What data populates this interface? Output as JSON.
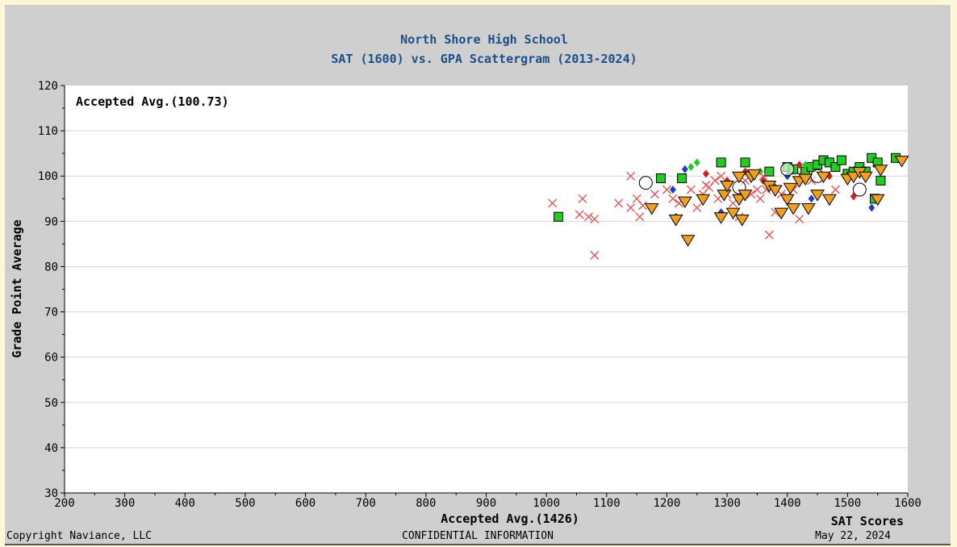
{
  "chart_data": {
    "type": "scatter",
    "title": "North Shore High School",
    "subtitle": "SAT (1600) vs. GPA Scattergram (2013-2024)",
    "xlabel": "SAT Scores",
    "ylabel": "Grade Point Average",
    "xlim": [
      200,
      1600
    ],
    "ylim": [
      30,
      120
    ],
    "xticks": [
      200,
      300,
      400,
      500,
      600,
      700,
      800,
      900,
      1000,
      1100,
      1200,
      1300,
      1400,
      1500,
      1600
    ],
    "yticks": [
      30,
      40,
      50,
      60,
      70,
      80,
      90,
      100,
      110,
      120
    ],
    "grid": "horizontal",
    "inner_annotation": "Accepted Avg.(100.73)",
    "x_annotation": "Accepted Avg.(1426)",
    "series": [
      {
        "marker": "square",
        "color": "#22cc22",
        "points": [
          [
            1020,
            91
          ],
          [
            1190,
            99.5
          ],
          [
            1225,
            99.5
          ],
          [
            1290,
            103
          ],
          [
            1330,
            103
          ],
          [
            1370,
            101
          ],
          [
            1400,
            102
          ],
          [
            1410,
            101.5
          ],
          [
            1430,
            101
          ],
          [
            1440,
            102
          ],
          [
            1450,
            102.5
          ],
          [
            1460,
            103.5
          ],
          [
            1470,
            103
          ],
          [
            1480,
            102
          ],
          [
            1490,
            103.5
          ],
          [
            1500,
            100.5
          ],
          [
            1510,
            101
          ],
          [
            1520,
            102
          ],
          [
            1530,
            101
          ],
          [
            1540,
            104
          ],
          [
            1550,
            103
          ],
          [
            1555,
            99
          ],
          [
            1545,
            95
          ],
          [
            1580,
            104
          ]
        ]
      },
      {
        "marker": "diamond",
        "color": "#1e3fbf",
        "points": [
          [
            1210,
            97
          ],
          [
            1215,
            91
          ],
          [
            1230,
            101.5
          ],
          [
            1290,
            92
          ],
          [
            1380,
            97.5
          ],
          [
            1400,
            100
          ],
          [
            1430,
            99
          ],
          [
            1440,
            95
          ],
          [
            1500,
            100
          ],
          [
            1540,
            93
          ]
        ]
      },
      {
        "marker": "diamond",
        "color": "#22cc22",
        "points": [
          [
            1240,
            102
          ],
          [
            1250,
            103
          ],
          [
            1355,
            101
          ],
          [
            1430,
            102.5
          ]
        ]
      },
      {
        "marker": "diamond",
        "color": "#cc2222",
        "points": [
          [
            1265,
            100.5
          ],
          [
            1300,
            99
          ],
          [
            1330,
            101
          ],
          [
            1360,
            99
          ],
          [
            1420,
            102.5
          ],
          [
            1470,
            100
          ],
          [
            1510,
            95.5
          ]
        ]
      },
      {
        "marker": "x",
        "color": "#e06060",
        "points": [
          [
            1010,
            94
          ],
          [
            1055,
            91.5
          ],
          [
            1060,
            95
          ],
          [
            1070,
            91
          ],
          [
            1080,
            90.5
          ],
          [
            1080,
            82.5
          ],
          [
            1120,
            94
          ],
          [
            1140,
            100
          ],
          [
            1140,
            93
          ],
          [
            1150,
            95
          ],
          [
            1155,
            91
          ],
          [
            1160,
            93.5
          ],
          [
            1180,
            96
          ],
          [
            1200,
            97
          ],
          [
            1210,
            95
          ],
          [
            1220,
            94
          ],
          [
            1240,
            97
          ],
          [
            1250,
            93
          ],
          [
            1260,
            96
          ],
          [
            1265,
            98
          ],
          [
            1270,
            97.5
          ],
          [
            1280,
            99
          ],
          [
            1285,
            95
          ],
          [
            1290,
            100
          ],
          [
            1300,
            96
          ],
          [
            1310,
            94
          ],
          [
            1320,
            91
          ],
          [
            1330,
            99
          ],
          [
            1340,
            96
          ],
          [
            1350,
            97
          ],
          [
            1355,
            95
          ],
          [
            1360,
            100
          ],
          [
            1365,
            97
          ],
          [
            1370,
            87
          ],
          [
            1380,
            92
          ],
          [
            1390,
            96
          ],
          [
            1400,
            95.5
          ],
          [
            1410,
            97
          ],
          [
            1420,
            90.5
          ],
          [
            1425,
            100
          ],
          [
            1440,
            99
          ],
          [
            1480,
            97
          ]
        ]
      },
      {
        "marker": "circle",
        "color": "#ffffff",
        "points": [
          [
            1165,
            98.5
          ],
          [
            1320,
            97.5
          ],
          [
            1400,
            101.5
          ],
          [
            1450,
            100
          ],
          [
            1520,
            97
          ]
        ]
      },
      {
        "marker": "triangle",
        "color": "#f0a020",
        "points": [
          [
            1175,
            93
          ],
          [
            1215,
            90.5
          ],
          [
            1230,
            94.5
          ],
          [
            1235,
            86
          ],
          [
            1260,
            95
          ],
          [
            1290,
            91
          ],
          [
            1295,
            96
          ],
          [
            1300,
            98
          ],
          [
            1310,
            92
          ],
          [
            1320,
            95
          ],
          [
            1320,
            100
          ],
          [
            1325,
            90.5
          ],
          [
            1330,
            96
          ],
          [
            1340,
            100
          ],
          [
            1345,
            100.5
          ],
          [
            1370,
            98
          ],
          [
            1380,
            97
          ],
          [
            1390,
            92
          ],
          [
            1400,
            95
          ],
          [
            1405,
            97.5
          ],
          [
            1410,
            93
          ],
          [
            1420,
            99
          ],
          [
            1430,
            99.5
          ],
          [
            1435,
            93
          ],
          [
            1450,
            96
          ],
          [
            1460,
            100
          ],
          [
            1470,
            95
          ],
          [
            1500,
            99.5
          ],
          [
            1510,
            100
          ],
          [
            1520,
            101
          ],
          [
            1530,
            100
          ],
          [
            1550,
            95
          ],
          [
            1555,
            101.5
          ],
          [
            1590,
            103.5
          ]
        ]
      }
    ]
  },
  "footer": {
    "left": "Copyright Naviance, LLC",
    "center": "CONFIDENTIAL INFORMATION",
    "right": "May 22, 2024"
  }
}
